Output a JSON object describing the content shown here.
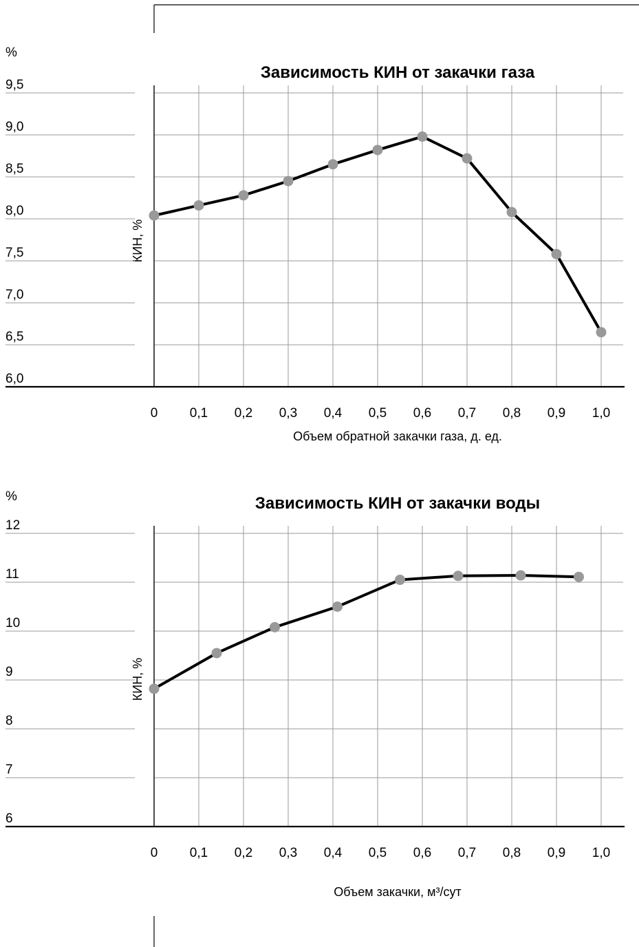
{
  "chart_data": [
    {
      "type": "line",
      "title": "Зависимость КИН от закачки газа",
      "unit": "%",
      "ylabel": "КИН, %",
      "xlabel": "Объем обратной закачки газа, д. ед.",
      "y_ticks": [
        "6,0",
        "6,5",
        "7,0",
        "7,5",
        "8,0",
        "8,5",
        "9,0",
        "9,5"
      ],
      "x_ticks": [
        "0",
        "0,1",
        "0,2",
        "0,3",
        "0,4",
        "0,5",
        "0,6",
        "0,7",
        "0,8",
        "0,9",
        "1,0"
      ],
      "ylim": [
        6.0,
        9.5
      ],
      "xlim": [
        0,
        1.0
      ],
      "grid": true,
      "series": [
        {
          "x": [
            0,
            0.1,
            0.2,
            0.3,
            0.4,
            0.5,
            0.6,
            0.7,
            0.8,
            0.9,
            1.0
          ],
          "y": [
            8.04,
            8.16,
            8.28,
            8.45,
            8.65,
            8.82,
            8.98,
            8.72,
            8.08,
            7.58,
            6.65
          ],
          "color": "#000000",
          "marker_color": "#999999"
        }
      ]
    },
    {
      "type": "line",
      "title": "Зависимость КИН от закачки воды",
      "unit": "%",
      "ylabel": "КИН, %",
      "xlabel": "Объем закачки, м³/сут",
      "y_ticks": [
        "6",
        "7",
        "8",
        "9",
        "10",
        "11",
        "12"
      ],
      "x_ticks": [
        "0",
        "0,1",
        "0,2",
        "0,3",
        "0,4",
        "0,5",
        "0,6",
        "0,7",
        "0,8",
        "0,9",
        "1,0"
      ],
      "ylim": [
        6,
        12
      ],
      "xlim": [
        0,
        1.0
      ],
      "grid": true,
      "series": [
        {
          "x": [
            0,
            0.14,
            0.27,
            0.41,
            0.55,
            0.68,
            0.82,
            0.95
          ],
          "y": [
            8.82,
            9.55,
            10.08,
            10.5,
            11.05,
            11.13,
            11.14,
            11.11
          ],
          "color": "#000000",
          "marker_color": "#999999"
        }
      ]
    }
  ]
}
